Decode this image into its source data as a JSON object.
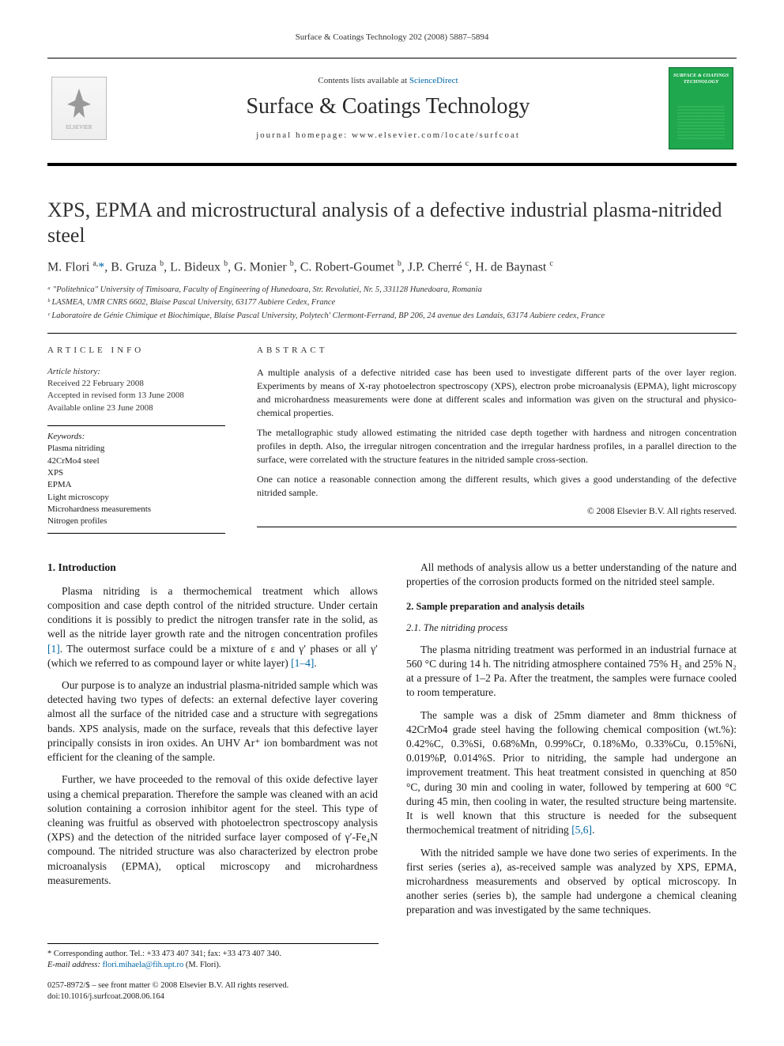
{
  "running_head": "Surface & Coatings Technology 202 (2008) 5887–5894",
  "masthead": {
    "contents_prefix": "Contents lists available at ",
    "contents_link": "ScienceDirect",
    "journal_name": "Surface & Coatings Technology",
    "homepage_label": "journal homepage: www.elsevier.com/locate/surfcoat",
    "publisher_logo_alt": "ELSEVIER",
    "cover_text": "SURFACE & COATINGS TECHNOLOGY"
  },
  "article": {
    "title": "XPS, EPMA and microstructural analysis of a defective industrial plasma-nitrided steel",
    "authors_html": "M. Flori <sup>a,</sup><a href='#'>*</a>, B. Gruza <sup>b</sup>, L. Bideux <sup>b</sup>, G. Monier <sup>b</sup>, C. Robert-Goumet <sup>b</sup>, J.P. Cherré <sup>c</sup>, H. de Baynast <sup>c</sup>",
    "affiliations": [
      "ᵃ \"Politehnica\" University of Timisoara, Faculty of Engineering of Hunedoara, Str. Revolutiei, Nr. 5, 331128 Hunedoara, Romania",
      "ᵇ LASMEA, UMR CNRS 6602, Blaise Pascal University, 63177 Aubiere Cedex, France",
      "ᶜ Laboratoire de Génie Chimique et Biochimique, Blaise Pascal University, Polytech' Clermont-Ferrand, BP 206, 24 avenue des Landais, 63174 Aubiere cedex, France"
    ]
  },
  "info": {
    "heading": "article info",
    "history_label": "Article history:",
    "history": [
      "Received 22 February 2008",
      "Accepted in revised form 13 June 2008",
      "Available online 23 June 2008"
    ],
    "keywords_label": "Keywords:",
    "keywords": [
      "Plasma nitriding",
      "42CrMo4 steel",
      "XPS",
      "EPMA",
      "Light microscopy",
      "Microhardness measurements",
      "Nitrogen profiles"
    ]
  },
  "abstract": {
    "heading": "abstract",
    "paragraphs": [
      "A multiple analysis of a defective nitrided case has been used to investigate different parts of the over layer region. Experiments by means of X-ray photoelectron spectroscopy (XPS), electron probe microanalysis (EPMA), light microscopy and microhardness measurements were done at different scales and information was given on the structural and physico-chemical properties.",
      "The metallographic study allowed estimating the nitrided case depth together with hardness and nitrogen concentration profiles in depth. Also, the irregular nitrogen concentration and the irregular hardness profiles, in a parallel direction to the surface, were correlated with the structure features in the nitrided sample cross-section.",
      "One can notice a reasonable connection among the different results, which gives a good understanding of the defective nitrided sample."
    ],
    "copyright": "© 2008 Elsevier B.V. All rights reserved."
  },
  "body": {
    "left": {
      "h_intro": "1. Introduction",
      "p1": "Plasma nitriding is a thermochemical treatment which allows composition and case depth control of the nitrided structure. Under certain conditions it is possibly to predict the nitrogen transfer rate in the solid, as well as the nitride layer growth rate and the nitrogen concentration profiles ",
      "ref1": "[1]",
      "p1b": ". The outermost surface could be a mixture of ε and γ′ phases or all γ′ (which we referred to as compound layer or white layer) ",
      "ref2": "[1–4]",
      "p1c": ".",
      "p2": "Our purpose is to analyze an industrial plasma-nitrided sample which was detected having two types of defects: an external defective layer covering almost all the surface of the nitrided case and a structure with segregations bands. XPS analysis, made on the surface, reveals that this defective layer principally consists in iron oxides. An UHV Ar⁺ ion bombardment was not efficient for the cleaning of the sample.",
      "p3": "Further, we have proceeded to the removal of this oxide defective layer using a chemical preparation. Therefore the sample was cleaned with an acid solution containing a corrosion inhibitor agent for the steel. This type of cleaning was fruitful as observed with photoelectron spectroscopy analysis (XPS) and the detection of the nitrided surface layer composed of γ′-Fe₄N compound. The nitrided structure was also characterized by electron probe microanalysis (EPMA), optical microscopy and microhardness measurements."
    },
    "right": {
      "p1": "All methods of analysis allow us a better understanding of the nature and properties of the corrosion products formed on the nitrided steel sample.",
      "h_sample": "2. Sample preparation and analysis details",
      "h_proc": "2.1. The nitriding process",
      "p2": "The plasma nitriding treatment was performed in an industrial furnace at 560 °C during 14 h. The nitriding atmosphere contained 75% H₂ and 25% N₂ at a pressure of 1–2 Pa. After the treatment, the samples were furnace cooled to room temperature.",
      "p3a": "The sample was a disk of 25mm diameter and 8mm thickness of 42CrMo4 grade steel having the following chemical composition (wt.%): 0.42%C, 0.3%Si, 0.68%Mn, 0.99%Cr, 0.18%Mo, 0.33%Cu, 0.15%Ni, 0.019%P, 0.014%S. Prior to nitriding, the sample had undergone an improvement treatment. This heat treatment consisted in quenching at 850 °C, during 30 min and cooling in water, followed by tempering at 600 °C during 45 min, then cooling in water, the resulted structure being martensite. It is well known that this structure is needed for the subsequent thermochemical treatment of nitriding ",
      "ref3": "[5,6]",
      "p3b": ".",
      "p4": "With the nitrided sample we have done two series of experiments. In the first series (series a), as-received sample was analyzed by XPS, EPMA, microhardness measurements and observed by optical microscopy. In another series (series b), the sample had undergone a chemical cleaning preparation and was investigated by the same techniques."
    }
  },
  "footnote": {
    "corr": "* Corresponding author. Tel.: +33 473 407 341; fax: +33 473 407 340.",
    "email_lbl": "E-mail address: ",
    "email": "flori.mihaela@fih.upt.ro",
    "email_sfx": " (M. Flori)."
  },
  "bottom": {
    "line1": "0257-8972/$ – see front matter © 2008 Elsevier B.V. All rights reserved.",
    "line2": "doi:10.1016/j.surfcoat.2008.06.164"
  }
}
